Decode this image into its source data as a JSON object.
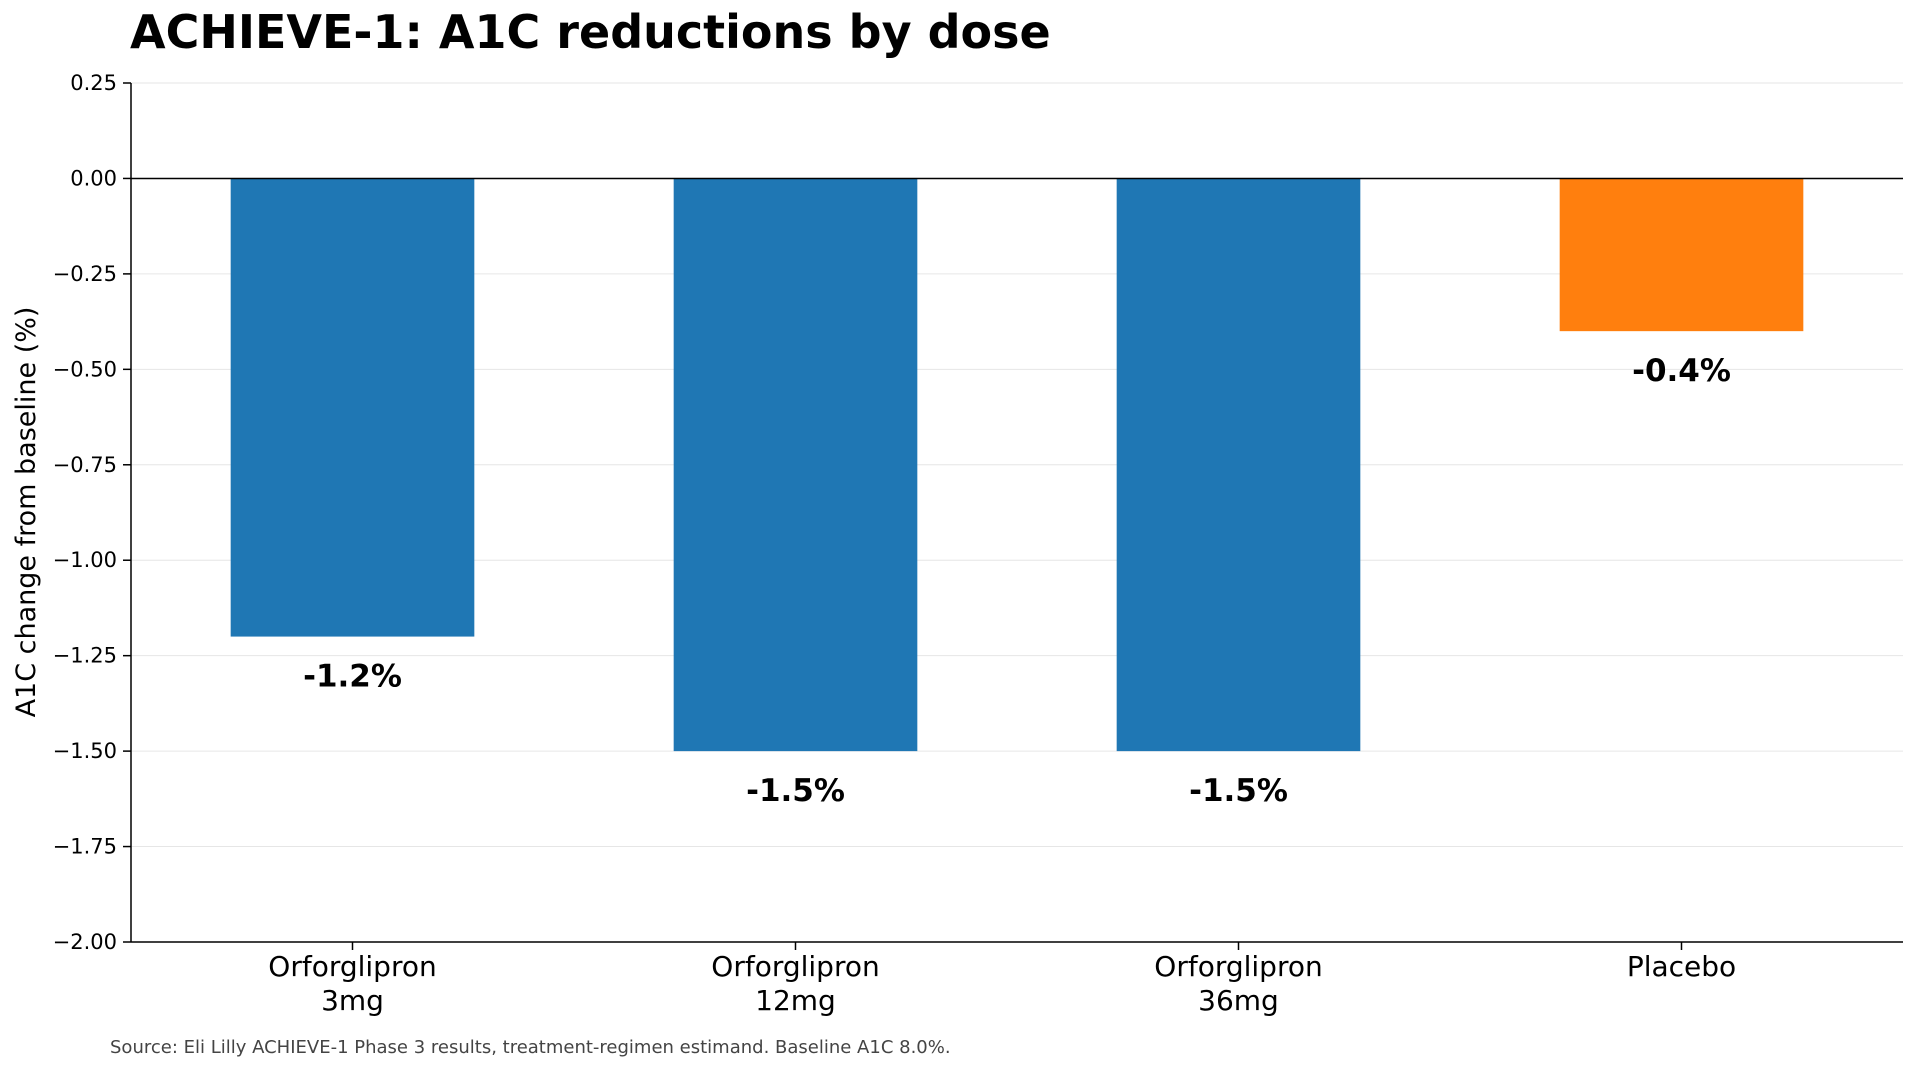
{
  "chart_data": {
    "type": "bar",
    "title": "ACHIEVE-1: A1C reductions by dose",
    "xlabel": "",
    "ylabel": "A1C change from baseline (%)",
    "categories": [
      [
        "Orforglipron",
        "3mg"
      ],
      [
        "Orforglipron",
        "12mg"
      ],
      [
        "Orforglipron",
        "36mg"
      ],
      [
        "Placebo"
      ]
    ],
    "values": [
      -1.2,
      -1.5,
      -1.5,
      -0.4
    ],
    "data_labels": [
      "-1.2%",
      "-1.5%",
      "-1.5%",
      "-0.4%"
    ],
    "bar_colors": [
      "#1f77b4",
      "#1f77b4",
      "#1f77b4",
      "#ff7f0e"
    ],
    "ylim": [
      -2.0,
      0.25
    ],
    "yticks": [
      0.25,
      0.0,
      -0.25,
      -0.5,
      -0.75,
      -1.0,
      -1.25,
      -1.5,
      -1.75,
      -2.0
    ],
    "ytick_labels": [
      "0.25",
      "0.00",
      "−0.25",
      "−0.50",
      "−0.75",
      "−1.00",
      "−1.25",
      "−1.50",
      "−1.75",
      "−2.00"
    ],
    "grid": "horizontal",
    "legend": "none",
    "source": "Source: Eli Lilly ACHIEVE-1 Phase 3 results, treatment-regimen estimand. Baseline A1C 8.0%."
  }
}
